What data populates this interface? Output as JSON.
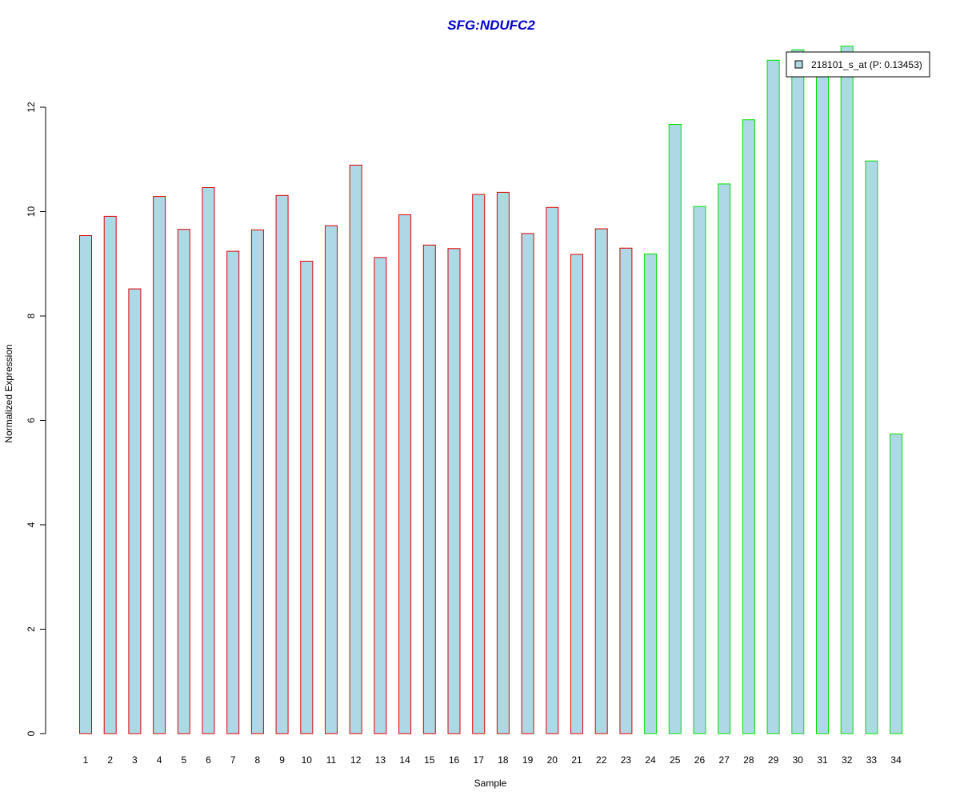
{
  "chart_data": {
    "type": "bar",
    "title": "SFG:NDUFC2",
    "xlabel": "Sample",
    "ylabel": "Normalized Expression",
    "categories": [
      "1",
      "2",
      "3",
      "4",
      "5",
      "6",
      "7",
      "8",
      "9",
      "10",
      "11",
      "12",
      "13",
      "14",
      "15",
      "16",
      "17",
      "18",
      "19",
      "20",
      "21",
      "22",
      "23",
      "24",
      "25",
      "26",
      "27",
      "28",
      "29",
      "30",
      "31",
      "32",
      "33",
      "34"
    ],
    "series": [
      {
        "name": "218101_s_at (P: 0.13453)",
        "values": [
          9.54,
          9.91,
          8.52,
          10.29,
          9.66,
          10.46,
          9.24,
          9.65,
          10.31,
          9.05,
          9.73,
          10.89,
          9.12,
          9.94,
          9.36,
          9.29,
          10.33,
          10.37,
          9.58,
          10.08,
          9.18,
          9.67,
          9.3,
          9.19,
          11.67,
          10.1,
          10.53,
          11.76,
          12.9,
          13.1,
          12.85,
          13.17,
          10.97,
          5.74
        ]
      }
    ],
    "groups": [
      {
        "range": [
          1,
          23
        ],
        "border_color": "#e00000"
      },
      {
        "range": [
          24,
          34
        ],
        "border_color": "#00e000"
      }
    ],
    "yticks": [
      "0",
      "2",
      "4",
      "6",
      "8",
      "10",
      "12"
    ],
    "ylim": [
      0,
      13.2
    ],
    "bar_fill": "#add8e6",
    "legend_position": "top-right",
    "grid": false
  },
  "colors": {
    "title": "#0000cc",
    "axis": "#000000"
  }
}
